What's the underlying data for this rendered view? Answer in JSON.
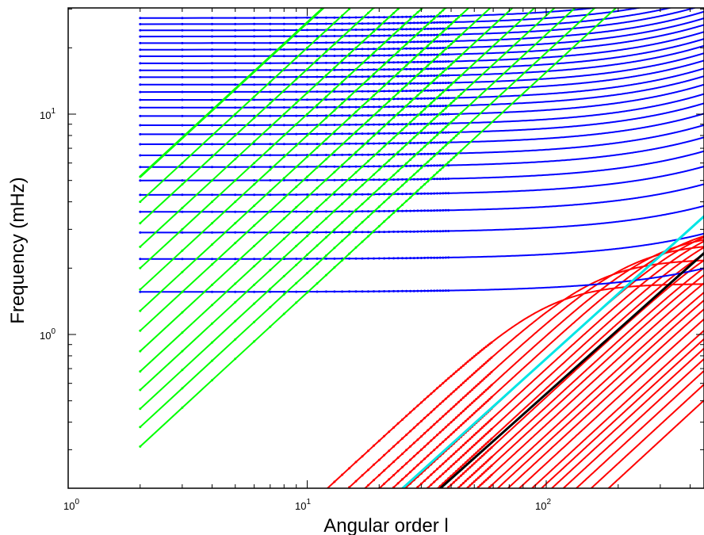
{
  "chart_data": {
    "type": "scatter",
    "xlabel": "Angular order l",
    "ylabel": "Frequency (mHz)",
    "x_scale": "log",
    "y_scale": "log",
    "xlim": [
      1,
      500
    ],
    "ylim": [
      0.2,
      30
    ],
    "grid": false,
    "legend": "none",
    "x_ticks": [
      {
        "value": 1,
        "base": "10",
        "exp": "0"
      },
      {
        "value": 10,
        "base": "10",
        "exp": "1"
      },
      {
        "value": 100,
        "base": "10",
        "exp": "2"
      }
    ],
    "y_ticks": [
      {
        "value": 1,
        "base": "10",
        "exp": "0"
      },
      {
        "value": 10,
        "base": "10",
        "exp": "1"
      }
    ],
    "y_minor_ticks": [
      0.2,
      0.3,
      0.4,
      0.5,
      0.6,
      0.7,
      0.8,
      0.9,
      2,
      3,
      4,
      5,
      6,
      7,
      8,
      9,
      20,
      30
    ],
    "x_minor_ticks": [
      2,
      3,
      4,
      5,
      6,
      7,
      8,
      9,
      20,
      30,
      40,
      50,
      60,
      70,
      80,
      90,
      200,
      300,
      400,
      500
    ],
    "series": [
      {
        "color": "#0000ff",
        "description_key": "p-mode branches",
        "branches": [
          {
            "f_low": 1.56,
            "slope": 0.0115
          },
          {
            "f_low": 2.2,
            "slope": 0.0125
          },
          {
            "f_low": 2.9,
            "slope": 0.0132
          },
          {
            "f_low": 3.6,
            "slope": 0.0138
          },
          {
            "f_low": 4.3,
            "slope": 0.0142
          },
          {
            "f_low": 5.0,
            "slope": 0.0147
          },
          {
            "f_low": 5.75,
            "slope": 0.015
          },
          {
            "f_low": 6.5,
            "slope": 0.0153
          },
          {
            "f_low": 7.3,
            "slope": 0.0155
          },
          {
            "f_low": 8.1,
            "slope": 0.0157
          },
          {
            "f_low": 8.9,
            "slope": 0.0159
          },
          {
            "f_low": 9.8,
            "slope": 0.016
          },
          {
            "f_low": 10.7,
            "slope": 0.016
          },
          {
            "f_low": 11.6,
            "slope": 0.016
          },
          {
            "f_low": 12.6,
            "slope": 0.016
          },
          {
            "f_low": 13.6,
            "slope": 0.016
          },
          {
            "f_low": 14.7,
            "slope": 0.016
          },
          {
            "f_low": 15.8,
            "slope": 0.016
          },
          {
            "f_low": 17.0,
            "slope": 0.016
          },
          {
            "f_low": 18.3,
            "slope": 0.016
          },
          {
            "f_low": 19.6,
            "slope": 0.016
          },
          {
            "f_low": 21.0,
            "slope": 0.016
          },
          {
            "f_low": 22.5,
            "slope": 0.016
          },
          {
            "f_low": 24.0,
            "slope": 0.016
          },
          {
            "f_low": 25.6,
            "slope": 0.016
          },
          {
            "f_low": 27.3,
            "slope": 0.016
          }
        ]
      },
      {
        "color": "#00ff00",
        "description_key": "f-mode / surface branches",
        "branches": [
          {
            "coef": 0.155,
            "power": 1.0
          },
          {
            "coef": 0.19,
            "power": 1.0
          },
          {
            "coef": 0.23,
            "power": 1.0
          },
          {
            "coef": 0.28,
            "power": 1.0
          },
          {
            "coef": 0.34,
            "power": 1.0
          },
          {
            "coef": 0.42,
            "power": 1.0
          },
          {
            "coef": 0.52,
            "power": 1.0
          },
          {
            "coef": 0.64,
            "power": 1.0
          },
          {
            "coef": 0.8,
            "power": 1.0
          },
          {
            "coef": 1.0,
            "power": 1.0
          },
          {
            "coef": 1.25,
            "power": 1.0
          },
          {
            "coef": 1.6,
            "power": 1.0
          },
          {
            "coef": 2.0,
            "power": 1.0
          },
          {
            "coef": 2.6,
            "power": 1.0
          }
        ]
      },
      {
        "color": "#ff0000",
        "description_key": "g-mode / low-frequency branches",
        "branches": [
          {
            "coef": 0.0165,
            "power": 1.0,
            "f_sat": 1.7
          },
          {
            "coef": 0.0135,
            "power": 1.0,
            "f_sat": 2.2
          },
          {
            "coef": 0.0115,
            "power": 1.0,
            "f_sat": 2.6
          },
          {
            "coef": 0.01,
            "power": 1.0,
            "f_sat": 2.9
          },
          {
            "coef": 0.0088,
            "power": 1.0,
            "f_sat": 3.2
          },
          {
            "coef": 0.0078,
            "power": 1.0,
            "f_sat": 3.4
          },
          {
            "coef": 0.007,
            "power": 1.0,
            "f_sat": 3.5
          },
          {
            "coef": 0.0063,
            "power": 1.0,
            "f_sat": 3.5
          },
          {
            "coef": 0.0057,
            "power": 1.0,
            "f_sat": 3.5
          },
          {
            "coef": 0.0052,
            "power": 1.0,
            "f_sat": 3.5
          },
          {
            "coef": 0.0047,
            "power": 1.0,
            "f_sat": 3.5
          },
          {
            "coef": 0.0043,
            "power": 1.0,
            "f_sat": 3.5
          },
          {
            "coef": 0.0039,
            "power": 1.0,
            "f_sat": 3.5
          },
          {
            "coef": 0.0035,
            "power": 1.0,
            "f_sat": 3.5
          },
          {
            "coef": 0.0032,
            "power": 1.0,
            "f_sat": 3.5
          },
          {
            "coef": 0.0029,
            "power": 1.0,
            "f_sat": 3.5
          },
          {
            "coef": 0.0026,
            "power": 1.0,
            "f_sat": 3.5
          },
          {
            "coef": 0.0023,
            "power": 1.0,
            "f_sat": 3.5
          },
          {
            "coef": 0.0021,
            "power": 1.0,
            "f_sat": 3.5
          },
          {
            "coef": 0.0019,
            "power": 1.0,
            "f_sat": 3.5
          },
          {
            "coef": 0.0017,
            "power": 1.0,
            "f_sat": 3.5
          },
          {
            "coef": 0.0015,
            "power": 1.0,
            "f_sat": 3.5
          },
          {
            "coef": 0.0013,
            "power": 1.0,
            "f_sat": 3.5
          },
          {
            "coef": 0.0011,
            "power": 1.0,
            "f_sat": 3.5
          }
        ]
      },
      {
        "color": "#00e5e5",
        "description_key": "cyan line",
        "points": [
          [
            25,
            0.2
          ],
          [
            500,
            3.75
          ]
        ]
      },
      {
        "color": "#000000",
        "description_key": "black line",
        "points": [
          [
            36,
            0.2
          ],
          [
            500,
            2.55
          ]
        ]
      }
    ]
  }
}
